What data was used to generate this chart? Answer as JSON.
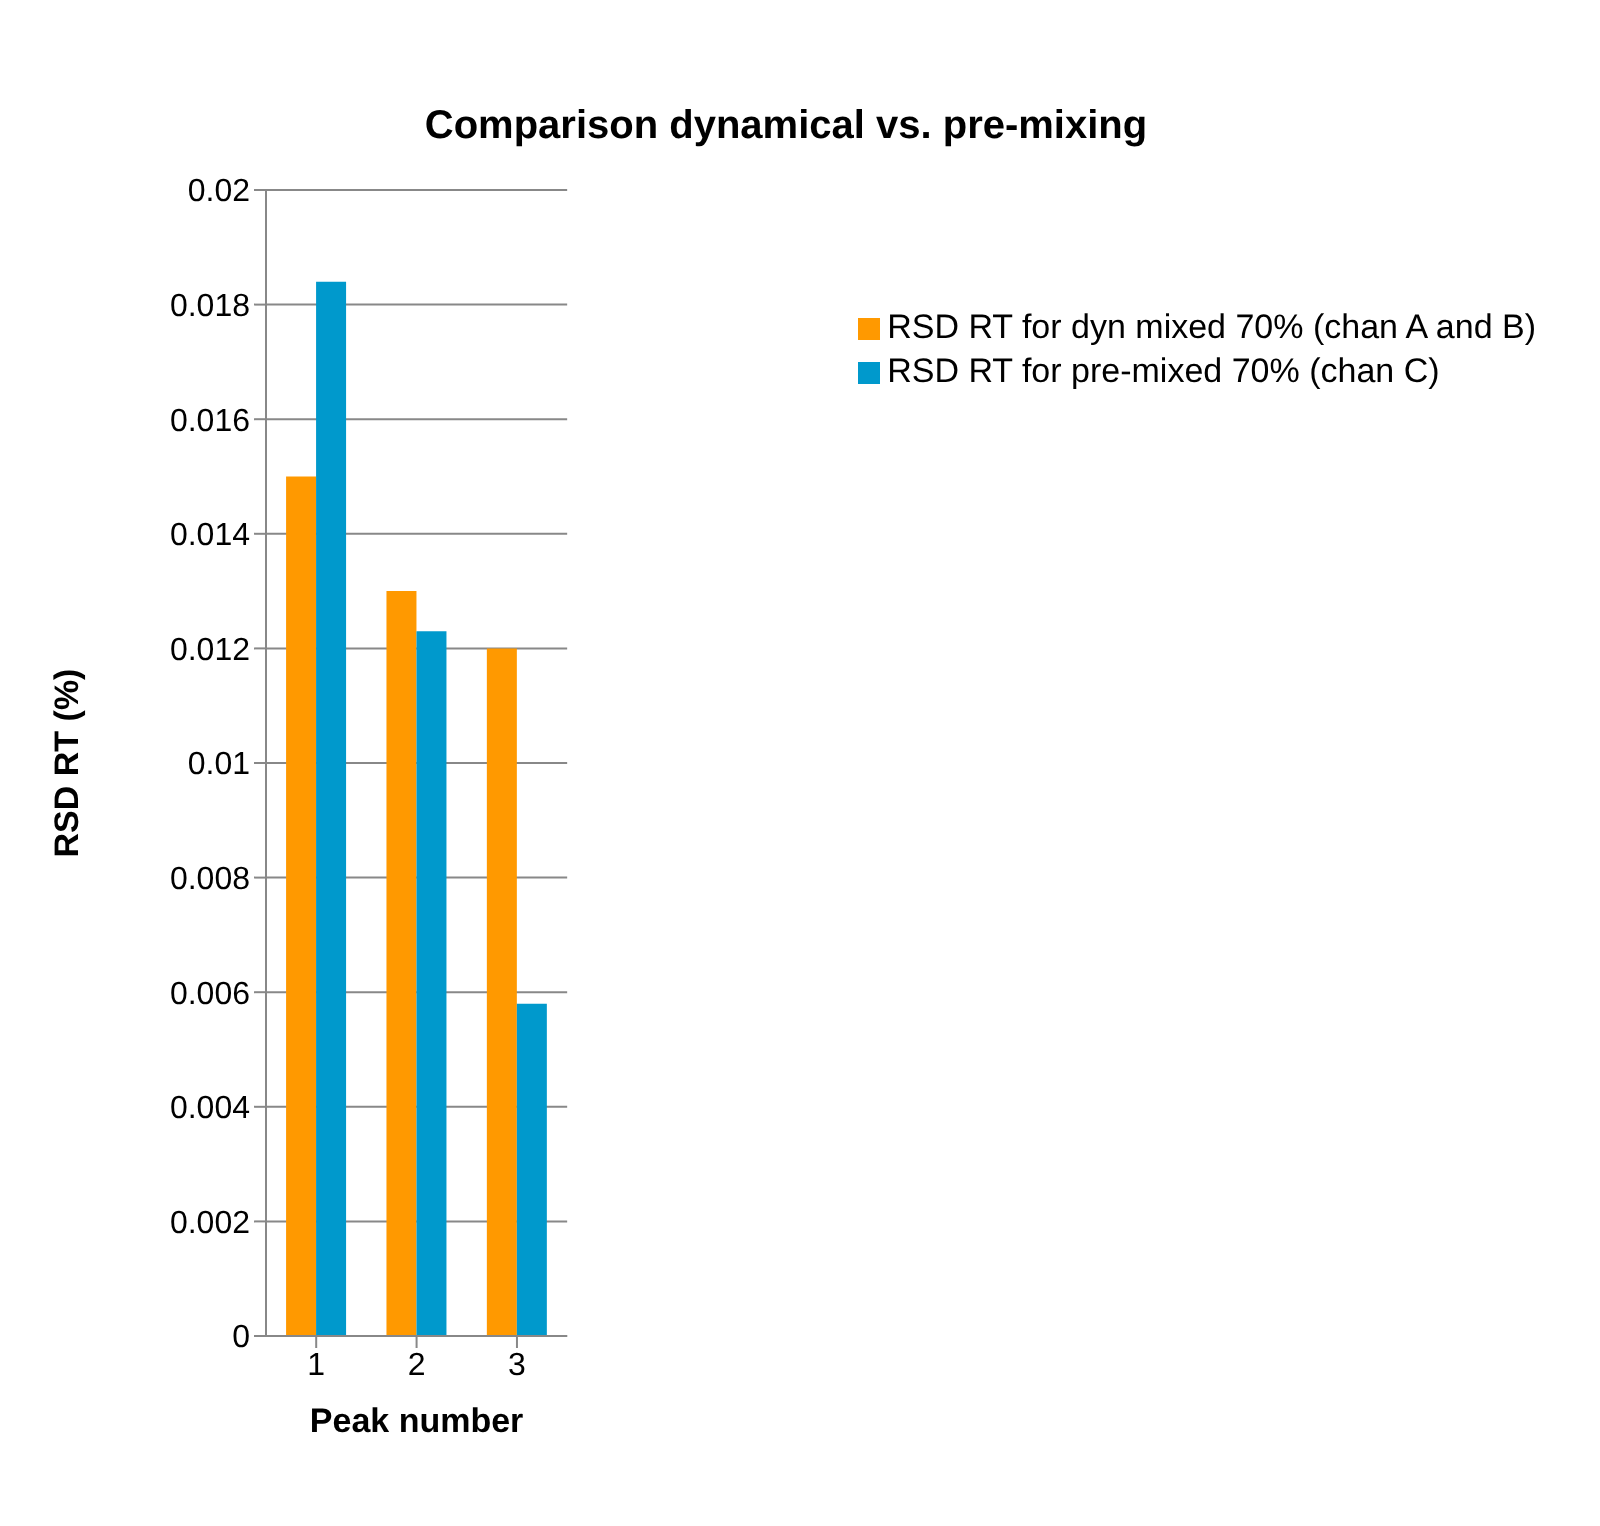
{
  "chart_data": {
    "type": "bar",
    "title": "Comparison dynamical vs. pre-mixing",
    "xlabel": "Peak number",
    "ylabel": "RSD RT (%)",
    "categories": [
      "1",
      "2",
      "3"
    ],
    "series": [
      {
        "name": "RSD RT for dyn mixed 70% (chan A and B)",
        "color": "#ff9900",
        "values": [
          0.015,
          0.013,
          0.012
        ]
      },
      {
        "name": "RSD RT for pre-mixed 70% (chan C)",
        "color": "#0099cc",
        "values": [
          0.0184,
          0.0123,
          0.0058
        ]
      }
    ],
    "ylim": [
      0,
      0.02
    ],
    "yticks": [
      0,
      0.002,
      0.004,
      0.006,
      0.008,
      0.01,
      0.012,
      0.014,
      0.016,
      0.018,
      0.02
    ],
    "grid": "y",
    "legend": "top right"
  }
}
